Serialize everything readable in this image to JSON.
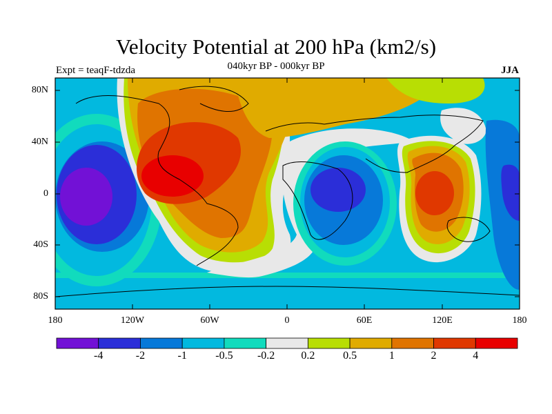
{
  "title": "Velocity Potential at 200 hPa (km2/s)",
  "subtitle": "040kyr BP - 000kyr BP",
  "expt_label": "Expt = teaqF-tdzda",
  "season": "JJA",
  "lat_ticks": [
    "80N",
    "40N",
    "0",
    "40S",
    "80S"
  ],
  "lon_ticks": [
    "180",
    "120W",
    "60W",
    "0",
    "60E",
    "120E",
    "180"
  ],
  "colorbar": {
    "colors": [
      "#7211d6",
      "#2b2ed8",
      "#0779d9",
      "#02b9df",
      "#11dbbd",
      "#e8e8e8",
      "#b8de04",
      "#e0ab00",
      "#e07400",
      "#e03800",
      "#e80000"
    ],
    "labels": [
      "-4",
      "-2",
      "-1",
      "-0.5",
      "-0.2",
      "0.2",
      "0.5",
      "1",
      "2",
      "4"
    ]
  }
}
